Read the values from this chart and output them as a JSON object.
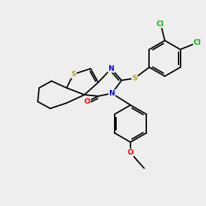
{
  "background_color": "#eeeeee",
  "fig_size": [
    3.0,
    3.0
  ],
  "dpi": 100,
  "atom_colors": {
    "S": "#bbaa00",
    "N": "#0000ff",
    "O": "#ff0000",
    "Cl": "#00bb00",
    "C": "#000000"
  },
  "lw": 1.4
}
